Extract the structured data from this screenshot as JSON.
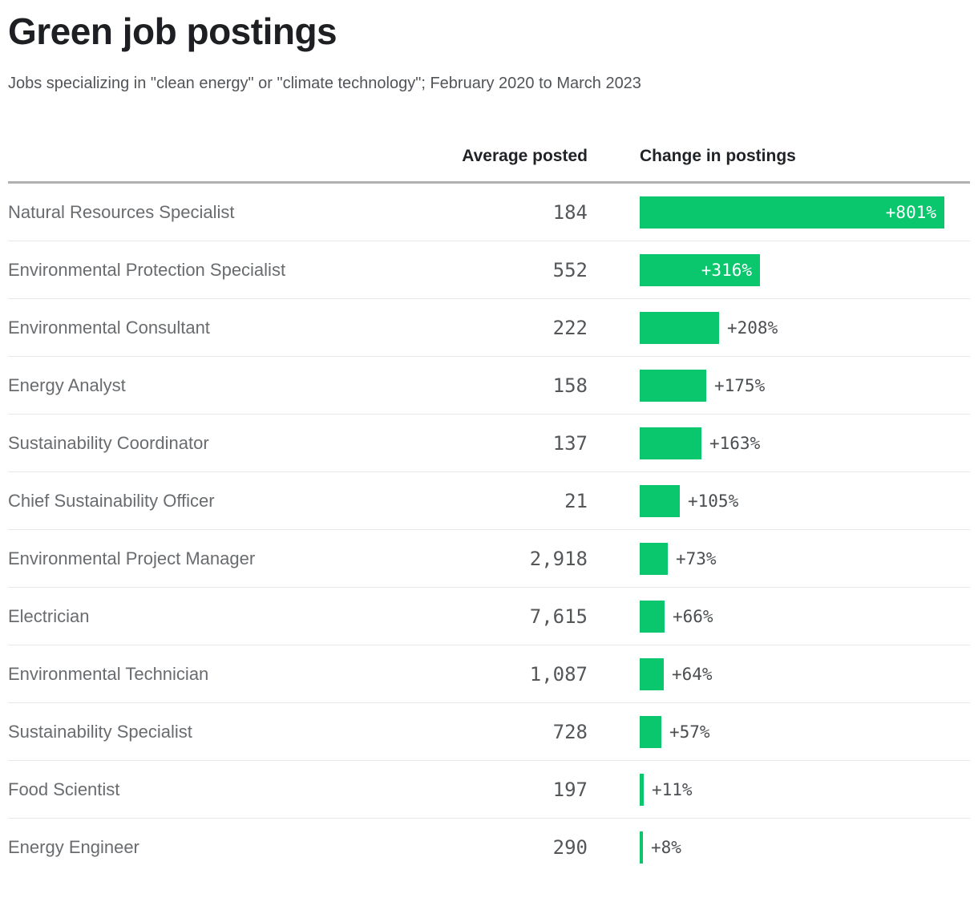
{
  "title": "Green job postings",
  "subtitle": "Jobs specializing in \"clean energy\" or \"climate technology\"; February 2020 to March 2023",
  "columns": {
    "avg": "Average posted",
    "change": "Change in postings"
  },
  "colors": {
    "bar_green": "#0ac76e",
    "header_rule": "#b1b1b3",
    "row_rule": "#e7e7e8",
    "title_text": "#1d1f22",
    "label_text": "#696c6f",
    "number_text": "#54575a",
    "inside_bar_label_text": "#ffffff"
  },
  "chart_data": {
    "type": "bar",
    "orientation": "horizontal",
    "title": "Green job postings",
    "subtitle": "Jobs specializing in \"clean energy\" or \"climate technology\"; February 2020 to March 2023",
    "legend_position": "none",
    "grid": false,
    "xlim": [
      0,
      870
    ],
    "categories": [
      "Natural Resources Specialist",
      "Environmental Protection Specialist",
      "Environmental Consultant",
      "Energy Analyst",
      "Sustainability Coordinator",
      "Chief Sustainability Officer",
      "Environmental Project Manager",
      "Electrician",
      "Environmental Technician",
      "Sustainability Specialist",
      "Food Scientist",
      "Energy Engineer"
    ],
    "series": [
      {
        "name": "Average posted",
        "values": [
          "184",
          "552",
          "222",
          "158",
          "137",
          "21",
          "2,918",
          "7,615",
          "1,087",
          "728",
          "197",
          "290"
        ]
      },
      {
        "name": "Change in postings (%)",
        "values": [
          801,
          316,
          208,
          175,
          163,
          105,
          73,
          66,
          64,
          57,
          11,
          8
        ]
      }
    ],
    "bar_labels": [
      "+801%",
      "+316%",
      "+208%",
      "+175%",
      "+163%",
      "+105%",
      "+73%",
      "+66%",
      "+64%",
      "+57%",
      "+11%",
      "+8%"
    ]
  }
}
